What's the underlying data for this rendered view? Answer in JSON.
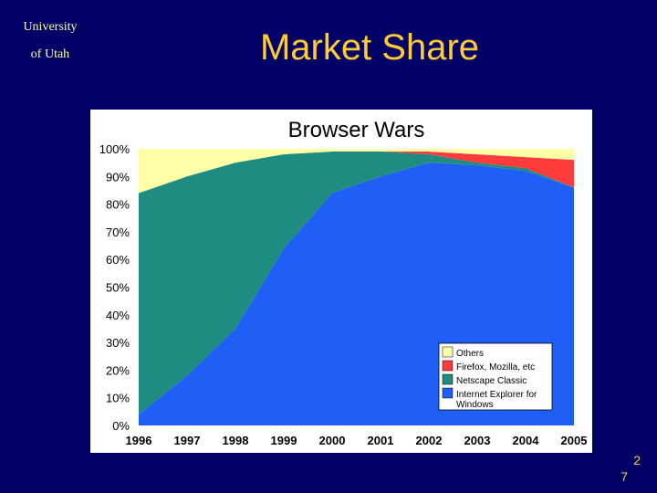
{
  "header": {
    "institution_line1": "University",
    "institution_line2": "of Utah",
    "title": "Market Share"
  },
  "page_number": {
    "part1": "2",
    "part2": "7"
  },
  "colors": {
    "background": "#000066",
    "institution_text": "#FFFF99",
    "title_text": "#FFCC33",
    "others": "#FFFFA8",
    "firefox": "#FF3B3B",
    "netscape": "#1E8C80",
    "ie": "#1F5FF5"
  },
  "chart_data": {
    "type": "area",
    "stacked": true,
    "title": "Browser Wars",
    "x": [
      "1996",
      "1997",
      "1998",
      "1999",
      "2000",
      "2001",
      "2002",
      "2003",
      "2004",
      "2005"
    ],
    "yticks": [
      "0%",
      "10%",
      "20%",
      "30%",
      "40%",
      "50%",
      "60%",
      "70%",
      "80%",
      "90%",
      "100%"
    ],
    "ylim": [
      0,
      100
    ],
    "legend_position": "bottom-right",
    "series": [
      {
        "name": "Internet Explorer for Windows",
        "color": "#1F5FF5",
        "values": [
          4,
          18,
          35,
          64,
          84,
          90,
          95,
          94,
          92,
          86
        ]
      },
      {
        "name": "Netscape Classic",
        "color": "#1E8C80",
        "values": [
          80,
          72,
          60,
          34,
          15,
          9,
          3,
          1,
          1,
          0
        ]
      },
      {
        "name": "Firefox, Mozilla, etc",
        "color": "#FF3B3B",
        "values": [
          0,
          0,
          0,
          0,
          0,
          0,
          1,
          3,
          4,
          10
        ]
      },
      {
        "name": "Others",
        "color": "#FFFFA8",
        "values": [
          16,
          10,
          5,
          2,
          1,
          1,
          1,
          2,
          3,
          4
        ]
      }
    ]
  }
}
